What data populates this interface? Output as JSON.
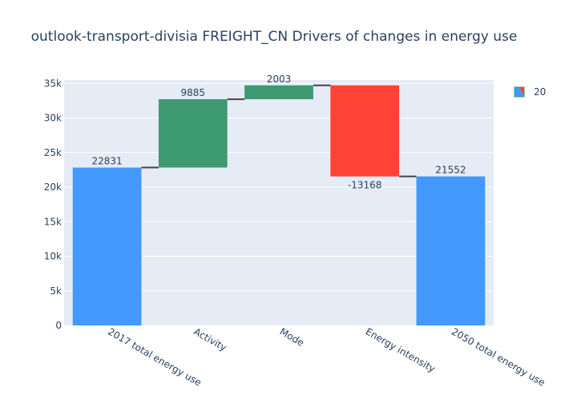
{
  "chart_data": {
    "type": "waterfall",
    "title": "outlook-transport-divisia FREIGHT_CN Drivers of changes in energy use",
    "categories": [
      "2017 total energy use",
      "Activity",
      "Mode",
      "Energy intensity",
      "2050 total energy use"
    ],
    "measures": [
      "absolute",
      "relative",
      "relative",
      "relative",
      "total"
    ],
    "values": [
      22831,
      9885,
      2003,
      -13168,
      21552
    ],
    "text_labels": [
      "22831",
      "9885",
      "2003",
      "-13168",
      "21552"
    ],
    "ylim": [
      0,
      35500
    ],
    "y_ticks": [
      0,
      5000,
      10000,
      15000,
      20000,
      25000,
      30000,
      35000
    ],
    "y_tick_labels": [
      "0",
      "5k",
      "10k",
      "15k",
      "20k",
      "25k",
      "30k",
      "35k"
    ],
    "grid": true,
    "legend": {
      "label": "20",
      "position": "top-right"
    },
    "colors": {
      "total": "#4499ff",
      "increasing": "#3d9970",
      "decreasing": "#ff4136",
      "connector": "#444444",
      "plot_bg": "#e5ecf6",
      "grid": "#ffffff",
      "text": "#2a3f5f"
    }
  }
}
